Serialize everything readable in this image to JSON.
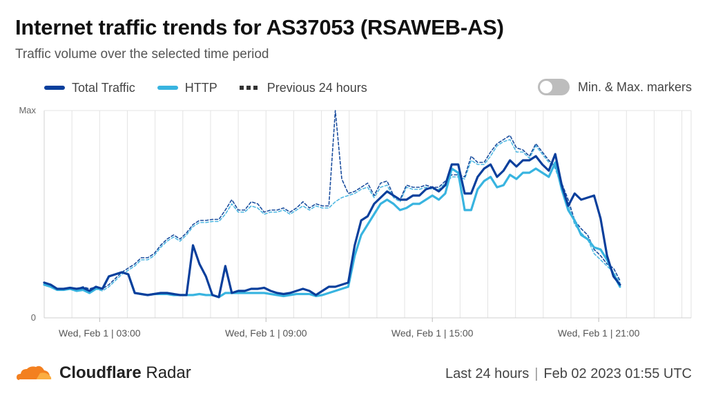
{
  "title": "Internet traffic trends for AS37053 (RSAWEB-AS)",
  "subtitle": "Traffic volume over the selected time period",
  "legend": {
    "total": "Total Traffic",
    "http": "HTTP",
    "previous": "Previous 24 hours"
  },
  "toggle": {
    "label": "Min. & Max. markers",
    "state": "off"
  },
  "footer": {
    "brand_bold": "Cloudflare",
    "brand_light": "Radar",
    "range": "Last 24 hours",
    "timestamp": "Feb 02 2023 01:55 UTC"
  },
  "colors": {
    "total": "#0a3f9c",
    "http": "#38b4e0",
    "previous_total": "#1a4d9e",
    "previous_http": "#4fb8e2",
    "cloudflare_orange": "#f38020",
    "cloudflare_light": "#fbad41"
  },
  "chart_data": {
    "type": "line",
    "title": "Internet traffic trends for AS37053 (RSAWEB-AS)",
    "subtitle": "Traffic volume over the selected time period",
    "ylabel_ticks": [
      "Max",
      "0"
    ],
    "ylim": [
      0,
      100
    ],
    "x_ticks": [
      "Wed, Feb 1 | 03:00",
      "Wed, Feb 1 | 09:00",
      "Wed, Feb 1 | 15:00",
      "Wed, Feb 1 | 21:00"
    ],
    "x_tick_positions": [
      6,
      24,
      42,
      60
    ],
    "xlim": [
      0,
      70
    ],
    "grid": true,
    "legend_position": "top-left",
    "series": [
      {
        "name": "Total Traffic",
        "style": "solid",
        "values": [
          17,
          16,
          14,
          14,
          14.5,
          14,
          14.5,
          13,
          15,
          14,
          20,
          21,
          22,
          21,
          12,
          11.5,
          11,
          11.5,
          12,
          12,
          11.5,
          11,
          11,
          35,
          26,
          20,
          11,
          10,
          25,
          12,
          13,
          13,
          14,
          14,
          14.5,
          13,
          12,
          11.5,
          12,
          13,
          14,
          13,
          11,
          13,
          15,
          15,
          16,
          17,
          35,
          47,
          49,
          55,
          58,
          61,
          59,
          57,
          57,
          59,
          59,
          62,
          63,
          61,
          64,
          74,
          74,
          60,
          60,
          68,
          72,
          74,
          68,
          71,
          76,
          73,
          76,
          76,
          78,
          74,
          71,
          79,
          64,
          54,
          60,
          57,
          58,
          59,
          48,
          30,
          20,
          16
        ],
        "x": [
          0,
          0.7,
          1.4,
          2.1,
          2.8,
          3.5,
          4.2,
          4.9,
          5.6,
          6.3,
          7,
          7.7,
          8.4,
          9.1,
          9.8,
          10.5,
          11.2,
          11.9,
          12.6,
          13.3,
          14,
          14.7,
          15.4,
          16.1,
          16.8,
          17.5,
          18.2,
          18.9,
          19.6,
          20.3,
          21,
          21.7,
          22.4,
          23.1,
          23.8,
          24.5,
          25.2,
          25.9,
          26.6,
          27.3,
          28,
          28.7,
          29.4,
          30.1,
          30.8,
          31.5,
          32.2,
          32.9,
          33.6,
          34.3,
          35,
          35.7,
          36.4,
          37.1,
          37.8,
          38.5,
          39.2,
          39.9,
          40.6,
          41.3,
          42,
          42.7,
          43.4,
          44.1,
          44.8,
          45.5,
          46.2,
          46.9,
          47.6,
          48.3,
          49,
          49.7,
          50.4,
          51.1,
          51.8,
          52.5,
          53.2,
          53.9,
          54.6,
          55.3,
          56,
          56.7,
          57.4,
          58.1,
          58.8,
          59.5,
          60.2,
          60.9,
          61.6,
          62.3
        ]
      },
      {
        "name": "HTTP",
        "style": "solid",
        "values": [
          16,
          15,
          13.5,
          13.5,
          14,
          13,
          13.5,
          12,
          14,
          14,
          20,
          21,
          22,
          21,
          12,
          11.5,
          11,
          11.5,
          11.5,
          11.5,
          11,
          11,
          11,
          11,
          11.5,
          11,
          11,
          10,
          12,
          12,
          12,
          12,
          12,
          12,
          12,
          11.5,
          11,
          10.5,
          11,
          11.5,
          11.5,
          11.5,
          10.5,
          11,
          12,
          13,
          14,
          15,
          30,
          40,
          45,
          50,
          55,
          57,
          55,
          52,
          53,
          55,
          55,
          57,
          59,
          57,
          60,
          72,
          70,
          52,
          52,
          62,
          66,
          68,
          63,
          64,
          69,
          67,
          70,
          70,
          72,
          70,
          68,
          75,
          62,
          52,
          47,
          40,
          38,
          34,
          33,
          28,
          21,
          15
        ],
        "x": [
          0,
          0.7,
          1.4,
          2.1,
          2.8,
          3.5,
          4.2,
          4.9,
          5.6,
          6.3,
          7,
          7.7,
          8.4,
          9.1,
          9.8,
          10.5,
          11.2,
          11.9,
          12.6,
          13.3,
          14,
          14.7,
          15.4,
          16.1,
          16.8,
          17.5,
          18.2,
          18.9,
          19.6,
          20.3,
          21,
          21.7,
          22.4,
          23.1,
          23.8,
          24.5,
          25.2,
          25.9,
          26.6,
          27.3,
          28,
          28.7,
          29.4,
          30.1,
          30.8,
          31.5,
          32.2,
          32.9,
          33.6,
          34.3,
          35,
          35.7,
          36.4,
          37.1,
          37.8,
          38.5,
          39.2,
          39.9,
          40.6,
          41.3,
          42,
          42.7,
          43.4,
          44.1,
          44.8,
          45.5,
          46.2,
          46.9,
          47.6,
          48.3,
          49,
          49.7,
          50.4,
          51.1,
          51.8,
          52.5,
          53.2,
          53.9,
          54.6,
          55.3,
          56,
          56.7,
          57.4,
          58.1,
          58.8,
          59.5,
          60.2,
          60.9,
          61.6,
          62.3
        ]
      },
      {
        "name": "Previous 24 hours",
        "style": "dashed",
        "values": [
          17,
          16,
          14,
          14,
          14.5,
          14,
          15,
          14,
          15,
          14,
          16,
          19,
          22,
          24,
          26,
          29,
          29,
          31,
          35,
          38,
          40,
          38,
          41,
          45,
          47,
          47,
          47.5,
          47.5,
          52,
          57,
          52,
          52,
          56,
          55,
          51,
          52,
          52,
          53,
          51,
          53,
          56,
          53,
          55,
          54,
          54,
          100,
          67,
          60,
          61,
          63,
          65,
          59,
          65,
          66,
          59,
          57,
          64,
          63,
          63,
          64,
          63,
          63,
          66,
          69,
          69,
          68,
          78,
          75,
          75,
          80,
          84,
          86,
          88,
          82,
          81,
          78,
          84,
          80,
          76,
          73,
          65,
          57,
          47,
          43,
          40,
          33,
          30,
          26,
          24,
          18
        ],
        "x": [
          0,
          0.7,
          1.4,
          2.1,
          2.8,
          3.5,
          4.2,
          4.9,
          5.6,
          6.3,
          7,
          7.7,
          8.4,
          9.1,
          9.8,
          10.5,
          11.2,
          11.9,
          12.6,
          13.3,
          14,
          14.7,
          15.4,
          16.1,
          16.8,
          17.5,
          18.2,
          18.9,
          19.6,
          20.3,
          21,
          21.7,
          22.4,
          23.1,
          23.8,
          24.5,
          25.2,
          25.9,
          26.6,
          27.3,
          28,
          28.7,
          29.4,
          30.1,
          30.8,
          31.5,
          32.2,
          32.9,
          33.6,
          34.3,
          35,
          35.7,
          36.4,
          37.1,
          37.8,
          38.5,
          39.2,
          39.9,
          40.6,
          41.3,
          42,
          42.7,
          43.4,
          44.1,
          44.8,
          45.5,
          46.2,
          46.9,
          47.6,
          48.3,
          49,
          49.7,
          50.4,
          51.1,
          51.8,
          52.5,
          53.2,
          53.9,
          54.6,
          55.3,
          56,
          56.7,
          57.4,
          58.1,
          58.8,
          59.5,
          60.2,
          60.9,
          61.6,
          62.3
        ]
      },
      {
        "name": "",
        "style": "dashed",
        "values": [
          16,
          15,
          13.5,
          13.5,
          14,
          13,
          14,
          13,
          14,
          13,
          15,
          18,
          21,
          23,
          25,
          28,
          28,
          30,
          34,
          37,
          39,
          37,
          40,
          44,
          46,
          46,
          46.5,
          46.5,
          50,
          55,
          51,
          51,
          54,
          53,
          50,
          51,
          51,
          52,
          50,
          52,
          54,
          52,
          54,
          53,
          53,
          56,
          58,
          59,
          60,
          62,
          63,
          58,
          63,
          64,
          58,
          56,
          63,
          62,
          62,
          63,
          62,
          62,
          65,
          68,
          68,
          67,
          76,
          74,
          74,
          78,
          83,
          85,
          86,
          80,
          80,
          77,
          83,
          79,
          75,
          72,
          63,
          55,
          45,
          41,
          38,
          31,
          28,
          25,
          22,
          17
        ],
        "x": [
          0,
          0.7,
          1.4,
          2.1,
          2.8,
          3.5,
          4.2,
          4.9,
          5.6,
          6.3,
          7,
          7.7,
          8.4,
          9.1,
          9.8,
          10.5,
          11.2,
          11.9,
          12.6,
          13.3,
          14,
          14.7,
          15.4,
          16.1,
          16.8,
          17.5,
          18.2,
          18.9,
          19.6,
          20.3,
          21,
          21.7,
          22.4,
          23.1,
          23.8,
          24.5,
          25.2,
          25.9,
          26.6,
          27.3,
          28,
          28.7,
          29.4,
          30.1,
          30.8,
          31.5,
          32.2,
          32.9,
          33.6,
          34.3,
          35,
          35.7,
          36.4,
          37.1,
          37.8,
          38.5,
          39.2,
          39.9,
          40.6,
          41.3,
          42,
          42.7,
          43.4,
          44.1,
          44.8,
          45.5,
          46.2,
          46.9,
          47.6,
          48.3,
          49,
          49.7,
          50.4,
          51.1,
          51.8,
          52.5,
          53.2,
          53.9,
          54.6,
          55.3,
          56,
          56.7,
          57.4,
          58.1,
          58.8,
          59.5,
          60.2,
          60.9,
          61.6,
          62.3
        ]
      }
    ]
  }
}
